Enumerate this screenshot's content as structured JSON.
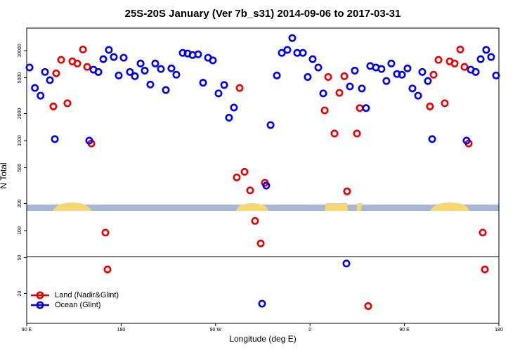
{
  "chart_data": {
    "type": "scatter",
    "title": "25S-20S January (Ver 7b_s31)   2014-09-06 to 2017-03-31",
    "x_label": "Longitude (deg E)",
    "y_label": "N Total",
    "log_y": true,
    "legend": "lower left",
    "xlim": [
      90,
      540
    ],
    "xticks": [
      {
        "value": 90,
        "label": "90 E"
      },
      {
        "value": 180,
        "label": "180"
      },
      {
        "value": 270,
        "label": "90 W"
      },
      {
        "value": 360,
        "label": "0"
      },
      {
        "value": 450,
        "label": "90 E"
      },
      {
        "value": 540,
        "label": "180"
      }
    ],
    "ylim": [
      9.3,
      17800
    ],
    "yticks": [
      20,
      50,
      100,
      200,
      500,
      1000,
      2000,
      5000,
      10000
    ],
    "series": [
      {
        "name": "Land (Nadir&Glint)",
        "color": "#ee0000",
        "x": [
          118.1,
          115.4,
          122.8,
          128.8,
          133.5,
          138.2,
          143.6,
          147.6,
          151.6,
          165,
          167,
          290.2,
          297.6,
          302.9,
          307.6,
          313,
          317,
          292.9,
          377.3,
          383.3,
          388,
          392.7,
          395.3,
          404.7,
          407.4,
          374,
          474.3,
          477.7,
          482.4,
          488.4,
          493.1,
          497.8,
          503.2,
          507.2,
          511.2,
          524.6,
          526.6,
          415.4
        ],
        "values": [
          5600,
          2400,
          7900,
          2600,
          7600,
          7200,
          10300,
          6600,
          930,
          95,
          37,
          390,
          450,
          280,
          128,
          72,
          340,
          3850,
          5100,
          1200,
          3400,
          5200,
          273,
          1200,
          2300,
          2170,
          2400,
          5400,
          7900,
          2600,
          7600,
          7200,
          10300,
          6600,
          930,
          95,
          37,
          14.5
        ]
      },
      {
        "name": "Ocean (Glint)",
        "color": "#0000ee",
        "x": [
          92.7,
          97.8,
          103.2,
          107.4,
          112.1,
          116.8,
          149.6,
          153.6,
          158.3,
          163,
          168.3,
          173,
          177.7,
          182.4,
          188.4,
          193.1,
          198.5,
          202.5,
          207.8,
          212.5,
          217.9,
          222.6,
          227.9,
          232.6,
          238.7,
          243.3,
          248,
          253.4,
          258.1,
          262.8,
          267.4,
          272.8,
          278.2,
          282.8,
          287.5,
          318.3,
          314.3,
          322.4,
          328.4,
          333.1,
          338.4,
          343.1,
          347.8,
          353.2,
          357.8,
          362.5,
          367.9,
          372.6,
          394.7,
          398,
          402.7,
          409.4,
          413.4,
          417.4,
          422.8,
          428.1,
          432.8,
          437.5,
          442.9,
          447.6,
          452.9,
          457.6,
          463,
          467,
          472.3,
          476.4,
          509.2,
          513.2,
          517.9,
          522.6,
          527.9,
          532.6,
          537.3
        ],
        "values": [
          6500,
          3850,
          3160,
          5800,
          4700,
          1040,
          1000,
          6150,
          5800,
          8050,
          10200,
          8500,
          5300,
          8350,
          5800,
          5200,
          7200,
          6000,
          4200,
          7200,
          6250,
          3650,
          6350,
          5400,
          9450,
          9300,
          8950,
          9100,
          4400,
          8350,
          7800,
          3350,
          4150,
          1800,
          2330,
          316,
          15.4,
          1490,
          5300,
          9450,
          10200,
          13800,
          9450,
          9450,
          5100,
          8050,
          6500,
          3350,
          43,
          4000,
          6000,
          3800,
          2300,
          6750,
          6500,
          6250,
          4600,
          7200,
          5500,
          5400,
          6350,
          3800,
          3160,
          5800,
          4600,
          1040,
          1000,
          6150,
          5800,
          8050,
          10200,
          8500,
          5300
        ]
      }
    ]
  }
}
